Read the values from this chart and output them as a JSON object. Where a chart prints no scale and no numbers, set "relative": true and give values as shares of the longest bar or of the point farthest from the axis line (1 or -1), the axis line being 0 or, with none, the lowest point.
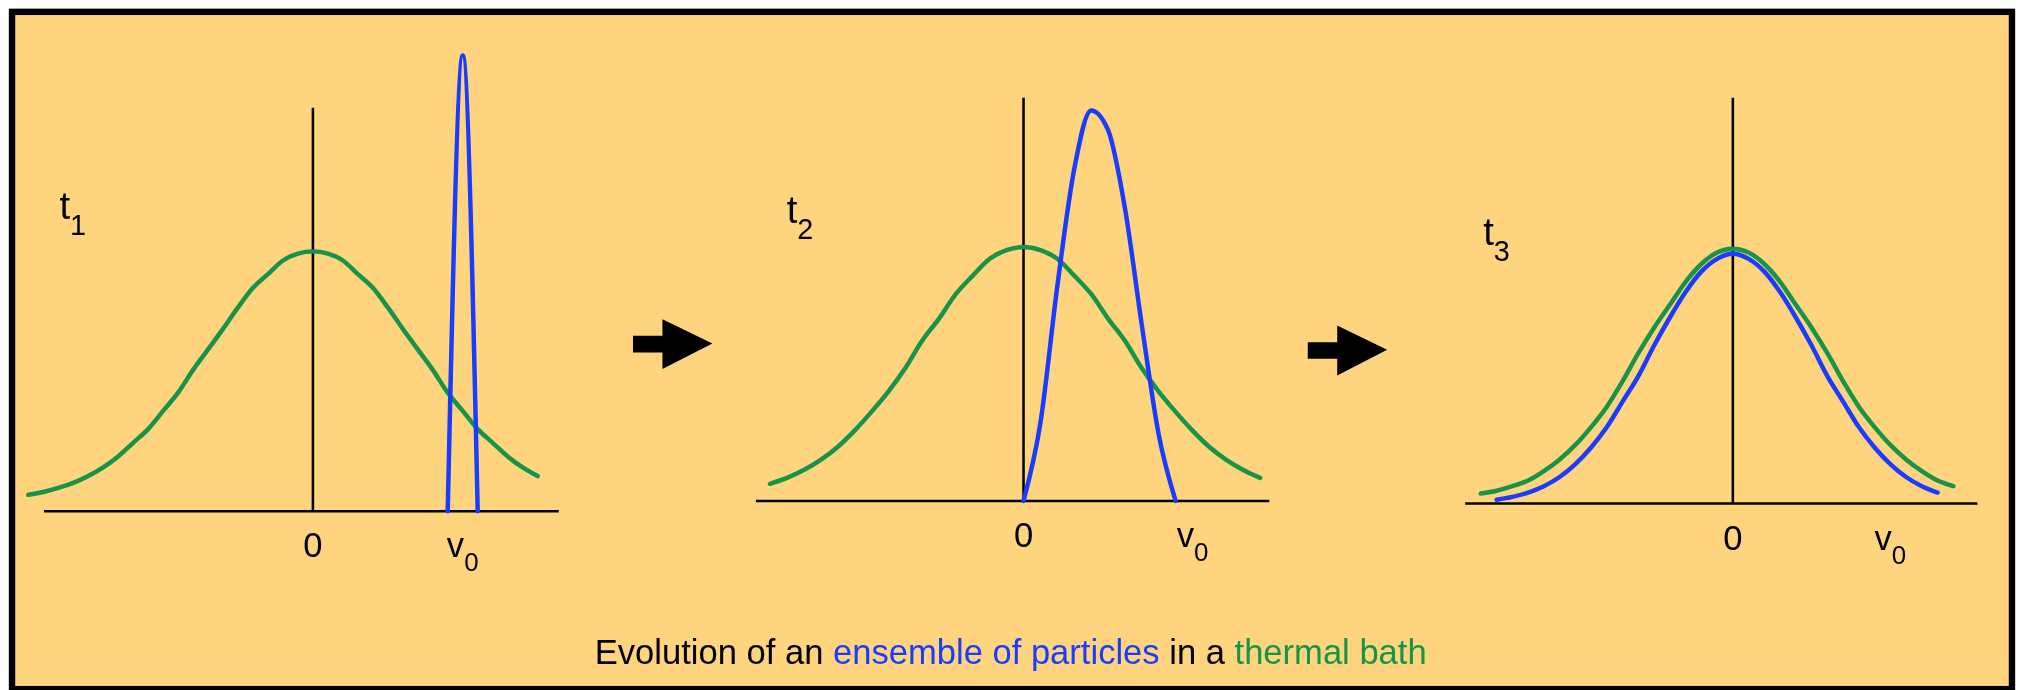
{
  "chart_data": [
    {
      "type": "line",
      "title": "t$_{1}$",
      "relative": true,
      "categories": [
        null,
        null,
        null,
        null,
        null,
        null,
        null,
        null,
        null,
        null,
        null,
        null,
        null,
        null,
        null,
        null,
        null,
        null,
        null,
        "0",
        null,
        null,
        null,
        null,
        null,
        null,
        null,
        null,
        null,
        "v$_{0}$",
        null,
        null,
        null,
        null,
        null
      ],
      "series": [
        {
          "color": "#179447",
          "values": [
            0.036,
            0.042,
            0.051,
            0.062,
            0.077,
            0.096,
            0.12,
            0.15,
            0.18,
            0.22,
            0.26,
            0.31,
            0.355,
            0.4,
            0.447,
            0.49,
            0.52,
            0.55,
            0.565,
            0.57,
            0.565,
            0.55,
            0.52,
            0.49,
            0.447,
            0.4,
            0.355,
            0.31,
            0.26,
            0.22,
            0.18,
            0.15,
            0.12,
            0.096,
            0.077
          ]
        },
        {
          "color": "#1a3cff",
          "values": [
            null,
            null,
            null,
            null,
            null,
            null,
            null,
            null,
            null,
            null,
            null,
            null,
            null,
            null,
            null,
            null,
            null,
            null,
            null,
            null,
            null,
            null,
            null,
            null,
            null,
            null,
            null,
            null,
            0,
            1,
            0,
            null,
            null,
            null,
            null
          ]
        }
      ]
    },
    {
      "type": "line",
      "title": "t$_{2}$",
      "relative": true,
      "categories": [
        null,
        null,
        null,
        null,
        null,
        null,
        null,
        null,
        null,
        null,
        null,
        null,
        null,
        null,
        null,
        "0",
        null,
        null,
        null,
        null,
        null,
        null,
        null,
        null,
        null,
        "v$_{0}$",
        null,
        null,
        null,
        null
      ],
      "annotations": [
        "Evolution of an",
        "ensemble of particles",
        "in a",
        "thermal bath"
      ],
      "series": [
        {
          "color": "#179447",
          "values": [
            0.044,
            0.059,
            0.079,
            0.105,
            0.138,
            0.18,
            0.228,
            0.28,
            0.34,
            0.41,
            0.467,
            0.53,
            0.577,
            0.62,
            0.642,
            0.65,
            0.642,
            0.62,
            0.577,
            0.53,
            0.467,
            0.41,
            0.34,
            0.28,
            0.228,
            0.18,
            0.138,
            0.105,
            0.079,
            0.059
          ]
        },
        {
          "color": "#1a3cff",
          "values": [
            null,
            null,
            null,
            null,
            null,
            null,
            null,
            null,
            null,
            null,
            null,
            null,
            null,
            null,
            null,
            0,
            0.2,
            0.55,
            0.85,
            1,
            0.95,
            0.75,
            0.45,
            0.17,
            0,
            null,
            null,
            null,
            null,
            null
          ]
        }
      ]
    },
    {
      "type": "line",
      "title": "t$_{3}$",
      "relative": true,
      "categories": [
        null,
        null,
        null,
        null,
        null,
        null,
        null,
        null,
        null,
        null,
        null,
        null,
        null,
        null,
        null,
        null,
        "0",
        null,
        null,
        null,
        null,
        null,
        null,
        null,
        null,
        null,
        "v$_{0}$",
        null,
        null,
        null,
        null
      ],
      "series": [
        {
          "color": "#179447",
          "values": [
            0.039,
            0.05,
            0.068,
            0.09,
            0.127,
            0.173,
            0.23,
            0.3,
            0.38,
            0.48,
            0.59,
            0.69,
            0.78,
            0.87,
            0.94,
            0.985,
            1,
            0.985,
            0.94,
            0.87,
            0.78,
            0.69,
            0.59,
            0.48,
            0.38,
            0.3,
            0.23,
            0.173,
            0.127,
            0.09,
            0.068
          ]
        },
        {
          "color": "#1a3cff",
          "values": [
            null,
            0.015,
            0.026,
            0.043,
            0.068,
            0.104,
            0.155,
            0.22,
            0.3,
            0.4,
            0.5,
            0.62,
            0.73,
            0.83,
            0.91,
            0.96,
            0.98,
            0.96,
            0.91,
            0.83,
            0.73,
            0.62,
            0.5,
            0.4,
            0.3,
            0.22,
            0.155,
            0.104,
            0.068,
            0.043,
            null
          ]
        }
      ]
    }
  ]
}
